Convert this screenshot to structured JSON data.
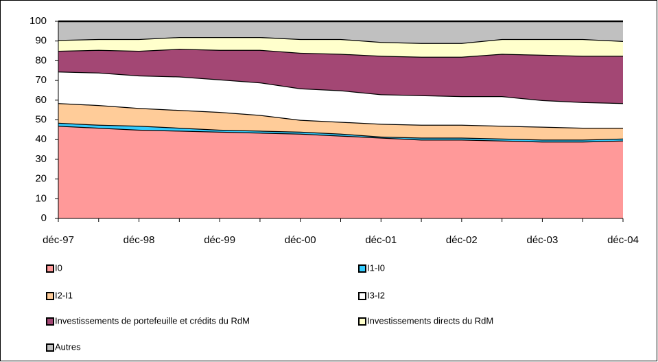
{
  "chart_data": {
    "type": "stacked-area",
    "categories": [
      "déc-97",
      null,
      "déc-98",
      null,
      "déc-99",
      null,
      "déc-00",
      null,
      "déc-01",
      null,
      "déc-02",
      null,
      "déc-03",
      null,
      "déc-04"
    ],
    "series": [
      {
        "name": "I0",
        "color": "#ff9999",
        "values": [
          47,
          46,
          45,
          44.5,
          44,
          43.5,
          43,
          42,
          41,
          40,
          40,
          39.5,
          39,
          39,
          39.5
        ]
      },
      {
        "name": "I1-I0",
        "color": "#33ccff",
        "values": [
          1.5,
          1.5,
          2,
          1.5,
          1,
          1,
          1,
          1,
          0.5,
          1,
          1,
          1,
          1,
          1,
          1
        ]
      },
      {
        "name": "I2-I1",
        "color": "#ffcc99",
        "values": [
          10,
          10,
          9,
          9,
          9,
          8,
          6,
          6,
          6.5,
          6.5,
          6.5,
          6.5,
          6.5,
          6,
          5.5
        ]
      },
      {
        "name": "I3-I2",
        "color": "#ffffff",
        "values": [
          16,
          16.5,
          16.5,
          17,
          16.5,
          16.5,
          16,
          16,
          15,
          15,
          14.5,
          15,
          13.5,
          13,
          12.5
        ]
      },
      {
        "name": "Investissements de portefeuille et crédits du RdM",
        "color": "#a34774",
        "values": [
          10.5,
          11.5,
          12.5,
          14,
          15,
          16.5,
          18,
          18.5,
          19.5,
          19.5,
          20,
          21.5,
          23,
          23.5,
          24
        ]
      },
      {
        "name": "Investissements directs du RdM",
        "color": "#ffffcc",
        "values": [
          5.5,
          5.5,
          6,
          6,
          6.5,
          6.5,
          7,
          7.5,
          7,
          7,
          7,
          7.5,
          8,
          8.5,
          7.5
        ]
      },
      {
        "name": "Autres",
        "color": "#c0c0c0",
        "values": [
          9.5,
          9,
          9,
          8,
          8,
          8,
          9,
          9,
          10.5,
          11,
          11,
          9,
          9,
          9,
          10
        ]
      }
    ],
    "ylim": [
      0,
      100
    ],
    "yticks": [
      0,
      10,
      20,
      30,
      40,
      50,
      60,
      70,
      80,
      90,
      100
    ]
  }
}
